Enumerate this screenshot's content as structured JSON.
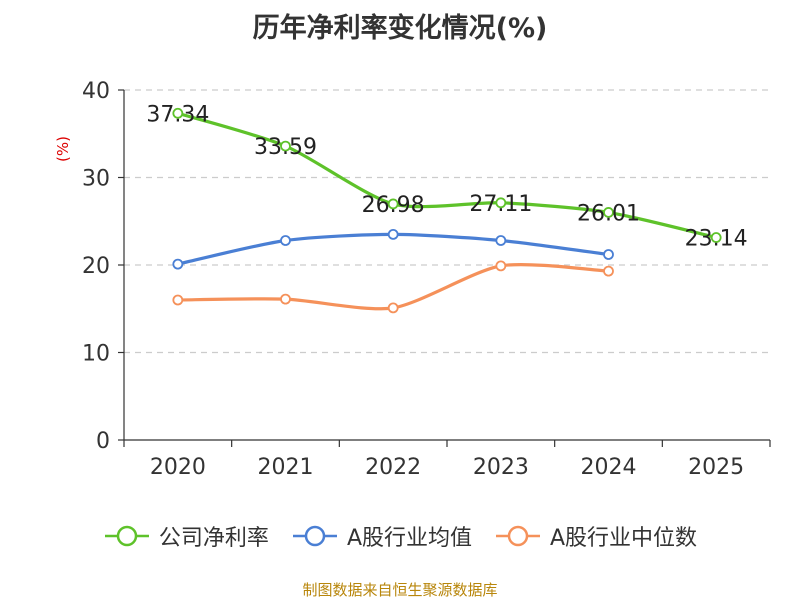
{
  "chart_data": {
    "type": "line",
    "title": "历年净利率变化情况(%)",
    "ylabel": "(%)",
    "categories": [
      "2020",
      "2021",
      "2022",
      "2023",
      "2024",
      "2025"
    ],
    "ylim": [
      0,
      40
    ],
    "yticks": [
      0,
      10,
      20,
      30,
      40
    ],
    "grid": true,
    "legend_position": "bottom",
    "series": [
      {
        "name": "公司净利率",
        "color": "#5ec22a",
        "values": [
          37.34,
          33.59,
          26.98,
          27.11,
          26.01,
          23.14
        ],
        "labels": [
          "37.34",
          "33.59",
          "26.98",
          "27.11",
          "26.01",
          "23.14"
        ]
      },
      {
        "name": "A股行业均值",
        "color": "#4a7fd4",
        "values": [
          20.1,
          22.8,
          23.5,
          22.8,
          21.2,
          null
        ]
      },
      {
        "name": "A股行业中位数",
        "color": "#f5915a",
        "values": [
          16.0,
          16.1,
          15.1,
          19.9,
          19.3,
          null
        ]
      }
    ]
  },
  "footer": {
    "source": "制图数据来自恒生聚源数据库"
  }
}
